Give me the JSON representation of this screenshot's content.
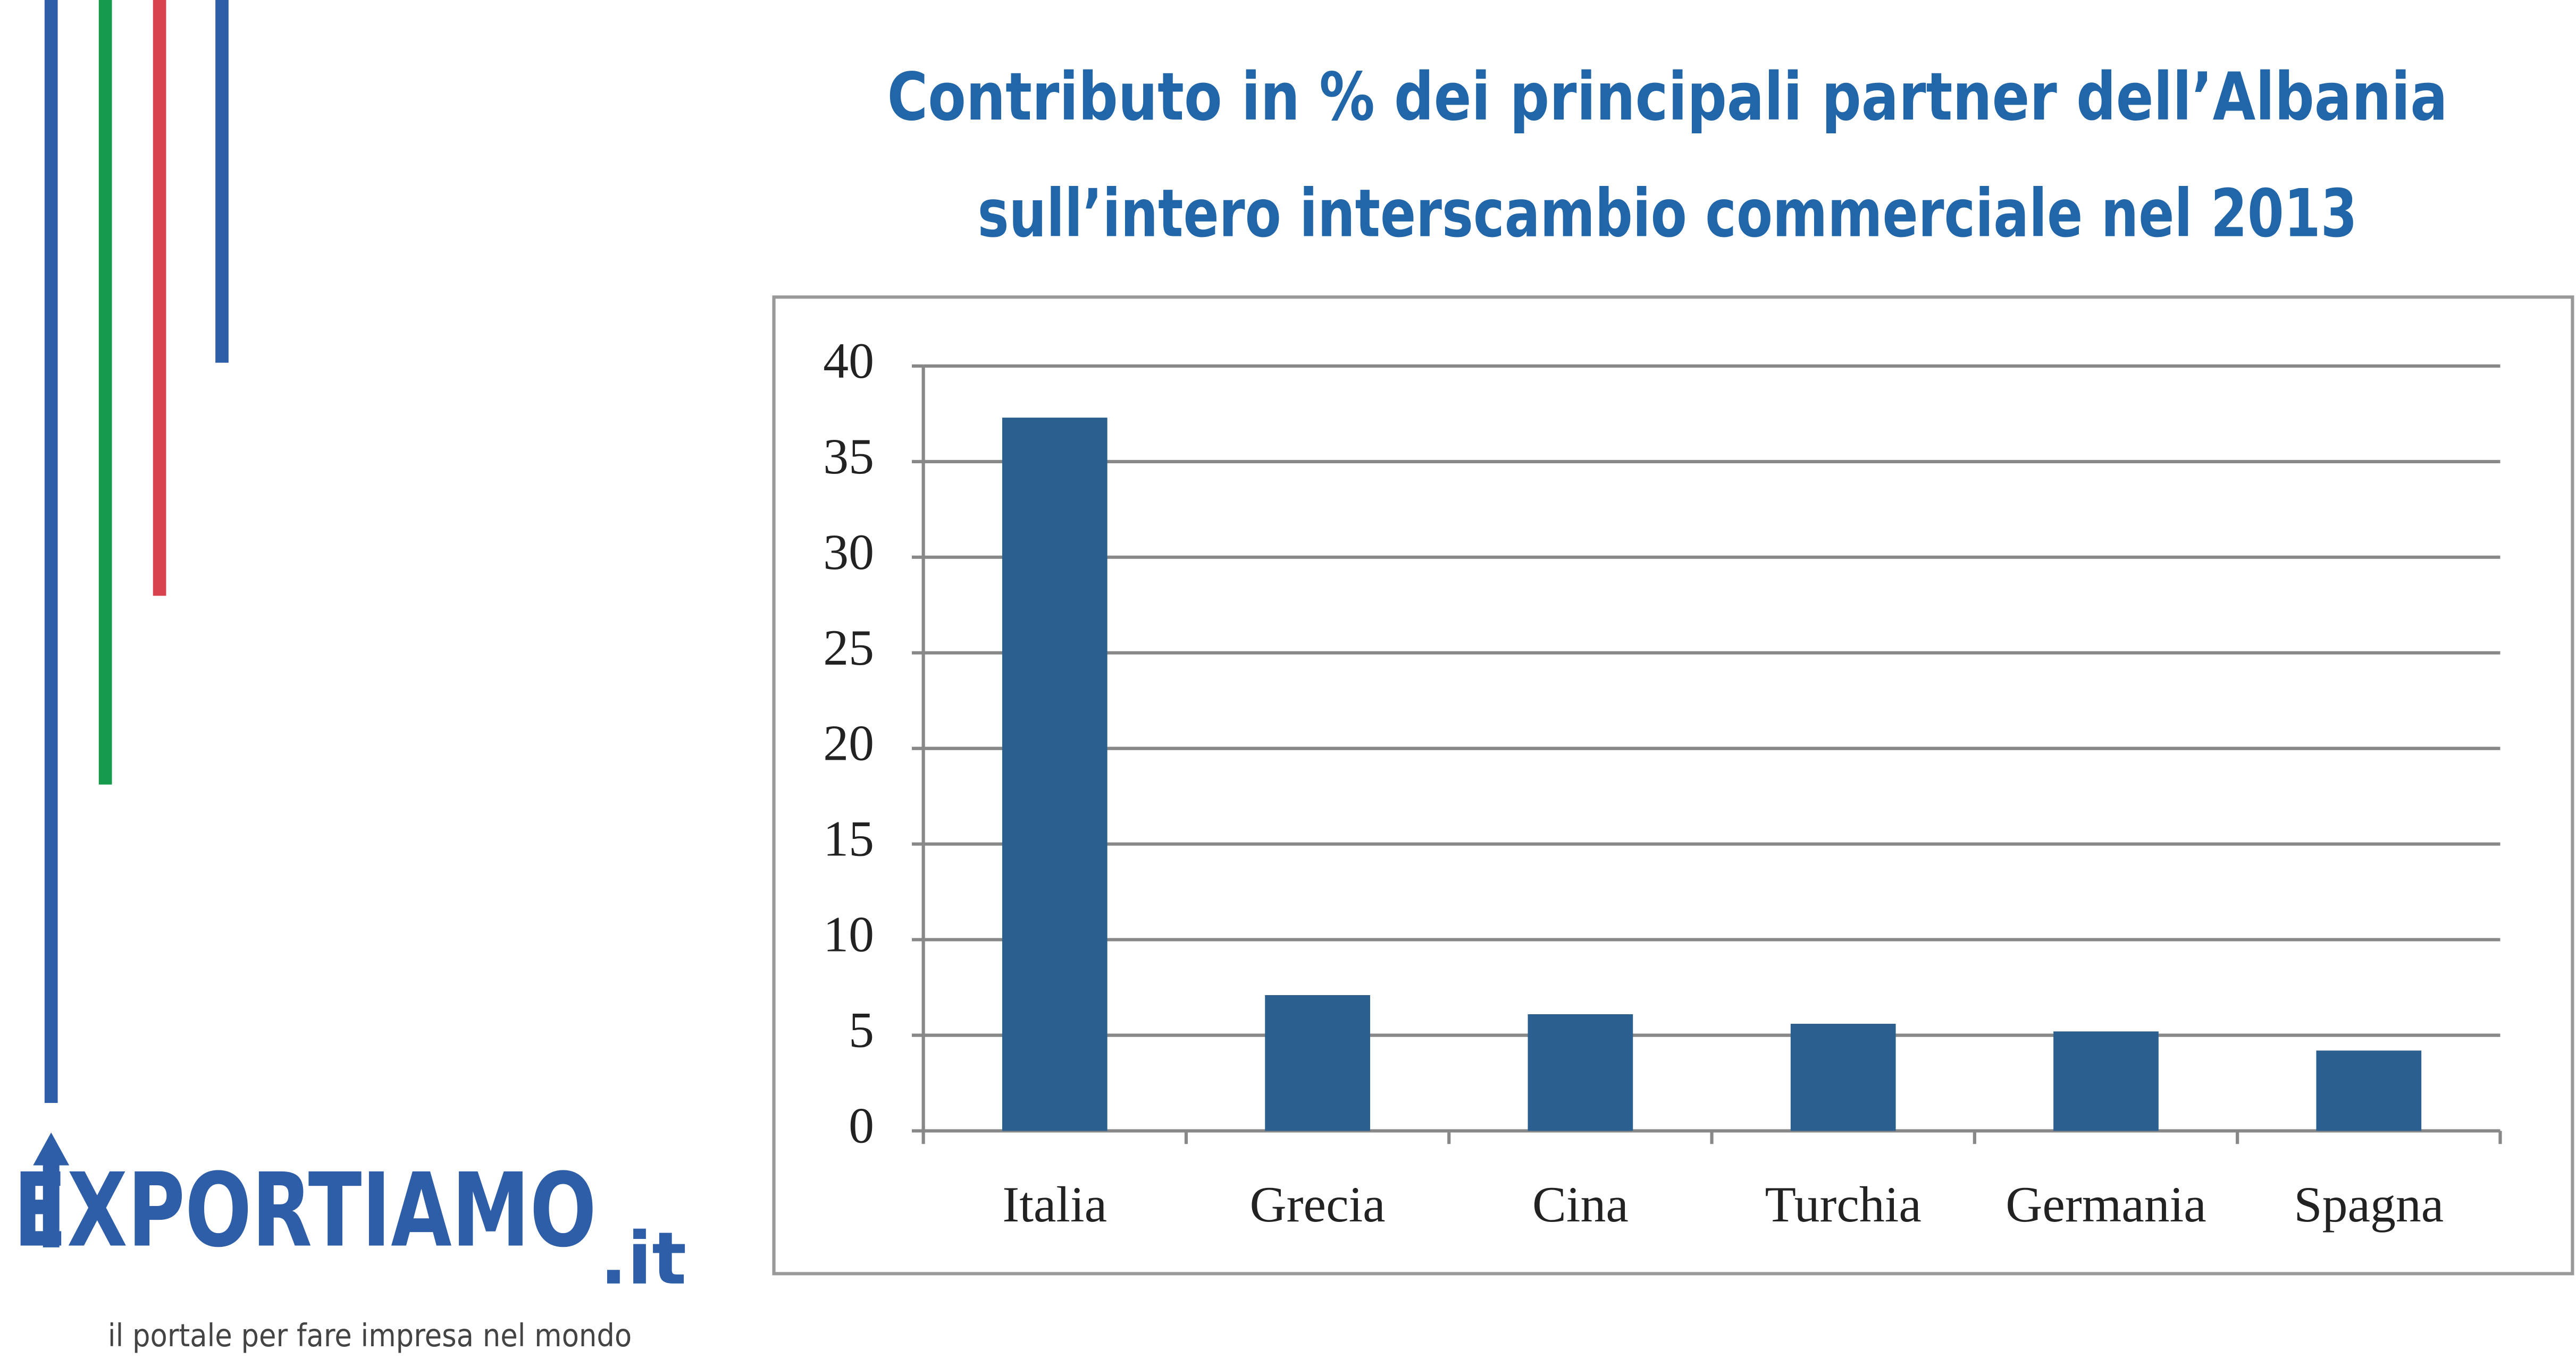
{
  "chart_data": {
    "type": "bar",
    "title": [
      "Contributo in % dei principali partner dell’Albania",
      "sull’intero interscambio commerciale nel 2013"
    ],
    "categories": [
      "Italia",
      "Grecia",
      "Cina",
      "Turchia",
      "Germania",
      "Spagna"
    ],
    "values": [
      37.3,
      7.1,
      6.1,
      5.6,
      5.2,
      4.2
    ],
    "color": "#2a5f8f",
    "ylim": [
      0,
      40
    ],
    "yticks": [
      0,
      5,
      10,
      15,
      20,
      25,
      30,
      35,
      40
    ],
    "grid": true
  },
  "logo": {
    "name": "EXPORTIAMO",
    "suffix": ".it",
    "tagline": "il portale per fare impresa nel mondo"
  }
}
